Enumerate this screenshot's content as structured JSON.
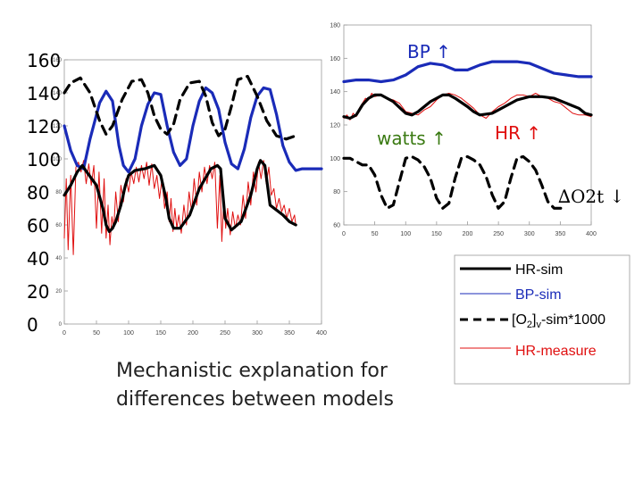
{
  "caption": "Mechanistic explanation for\ndifferences between models",
  "colors": {
    "hr_sim": "#000000",
    "bp_sim": "#1a2bb8",
    "o2_sim": "#000000",
    "hr_measure": "#e01010",
    "annot_blue": "#1a2bb8",
    "annot_green": "#3a7a12"
  },
  "chart_data": [
    {
      "type": "line",
      "title": "",
      "xlabel": "",
      "ylabel": "",
      "xlim": [
        0,
        400
      ],
      "ylim": [
        0,
        160
      ],
      "xticks": [
        "0",
        "50",
        "100",
        "150",
        "200",
        "250",
        "300",
        "350",
        "400"
      ],
      "yticks_small": [
        "0",
        "20",
        "40",
        "60",
        "80",
        "100",
        "120",
        "140",
        "160"
      ],
      "yticks_large": [
        "0",
        "20",
        "40",
        "60",
        "80",
        "100",
        "120",
        "140",
        "160"
      ],
      "series": [
        {
          "name": "BP-sim",
          "x": [
            0,
            10,
            20,
            30,
            40,
            55,
            65,
            75,
            85,
            92,
            100,
            110,
            120,
            130,
            140,
            150,
            160,
            170,
            180,
            190,
            200,
            210,
            220,
            230,
            240,
            250,
            260,
            270,
            280,
            290,
            300,
            310,
            320,
            330,
            340,
            350,
            360,
            370,
            380,
            390,
            400
          ],
          "values": [
            120,
            105,
            96,
            94,
            112,
            134,
            141,
            135,
            108,
            96,
            92,
            100,
            120,
            133,
            140,
            139,
            120,
            104,
            96,
            100,
            120,
            135,
            143,
            140,
            130,
            110,
            97,
            94,
            106,
            125,
            138,
            143,
            142,
            127,
            108,
            98,
            93,
            94,
            94,
            94,
            94
          ]
        },
        {
          "name": "[O2]v-sim*1000",
          "x": [
            0,
            10,
            25,
            40,
            55,
            65,
            75,
            90,
            105,
            120,
            130,
            140,
            150,
            160,
            170,
            180,
            195,
            210,
            220,
            230,
            240,
            250,
            260,
            270,
            285,
            300,
            315,
            330,
            345,
            360
          ],
          "values": [
            140,
            146,
            149,
            140,
            123,
            115,
            120,
            136,
            147,
            148,
            140,
            126,
            118,
            115,
            121,
            136,
            146,
            147,
            138,
            122,
            114,
            118,
            132,
            148,
            150,
            138,
            123,
            114,
            112,
            114
          ]
        },
        {
          "name": "HR-sim",
          "x": [
            0,
            10,
            20,
            28,
            35,
            50,
            60,
            65,
            70,
            75,
            80,
            88,
            95,
            100,
            110,
            125,
            140,
            150,
            158,
            163,
            170,
            180,
            195,
            210,
            228,
            238,
            243,
            250,
            260,
            275,
            290,
            300,
            305,
            312,
            320,
            340,
            350,
            360
          ],
          "values": [
            78,
            84,
            92,
            96,
            92,
            84,
            70,
            60,
            56,
            58,
            62,
            72,
            84,
            90,
            93,
            94,
            96,
            90,
            76,
            64,
            58,
            58,
            66,
            82,
            94,
            96,
            94,
            64,
            57,
            62,
            78,
            94,
            99,
            96,
            72,
            66,
            62,
            60
          ]
        },
        {
          "name": "HR-measure",
          "x": [
            0,
            3,
            6,
            10,
            14,
            18,
            22,
            26,
            30,
            34,
            38,
            42,
            46,
            50,
            54,
            58,
            62,
            65,
            68,
            71,
            74,
            77,
            80,
            84,
            88,
            92,
            96,
            100,
            104,
            108,
            112,
            116,
            120,
            124,
            128,
            132,
            136,
            140,
            144,
            148,
            152,
            156,
            160,
            163,
            166,
            169,
            172,
            175,
            178,
            182,
            186,
            190,
            194,
            198,
            202,
            206,
            210,
            214,
            218,
            222,
            226,
            230,
            234,
            238,
            242,
            245,
            248,
            251,
            254,
            258,
            262,
            266,
            270,
            274,
            278,
            282,
            286,
            290,
            294,
            298,
            302,
            306,
            310,
            314,
            318,
            322,
            326,
            330,
            334,
            338,
            342,
            346,
            350,
            354,
            358,
            360
          ],
          "values": [
            52,
            88,
            45,
            90,
            42,
            95,
            98,
            92,
            99,
            85,
            97,
            84,
            96,
            58,
            92,
            55,
            88,
            52,
            72,
            48,
            65,
            58,
            80,
            62,
            84,
            74,
            88,
            80,
            92,
            85,
            95,
            86,
            96,
            88,
            98,
            84,
            97,
            82,
            90,
            76,
            88,
            70,
            80,
            62,
            76,
            56,
            70,
            58,
            66,
            55,
            72,
            60,
            80,
            68,
            88,
            72,
            92,
            80,
            95,
            85,
            96,
            88,
            98,
            58,
            90,
            50,
            76,
            58,
            70,
            54,
            68,
            58,
            66,
            60,
            78,
            64,
            86,
            72,
            92,
            80,
            98,
            88,
            99,
            85,
            95,
            78,
            82,
            70,
            76,
            68,
            72,
            64,
            70,
            62,
            66,
            60
          ]
        }
      ]
    },
    {
      "type": "line",
      "title": "",
      "xlabel": "",
      "ylabel": "",
      "xlim": [
        0,
        400
      ],
      "ylim": [
        60,
        180
      ],
      "xticks": [
        "0",
        "50",
        "100",
        "150",
        "200",
        "250",
        "300",
        "350",
        "400"
      ],
      "yticks": [
        "60",
        "80",
        "100",
        "120",
        "140",
        "160",
        "180"
      ],
      "annotations": [
        "BP ↑",
        "watts ↑",
        "HR ↑",
        "∆O2t ↓"
      ],
      "series": [
        {
          "name": "BP-sim",
          "x": [
            0,
            20,
            40,
            60,
            80,
            100,
            120,
            140,
            160,
            180,
            200,
            220,
            240,
            260,
            280,
            300,
            320,
            340,
            360,
            380,
            400
          ],
          "values": [
            146,
            147,
            147,
            146,
            147,
            150,
            155,
            157,
            156,
            153,
            153,
            156,
            158,
            158,
            158,
            157,
            154,
            151,
            150,
            149,
            149
          ]
        },
        {
          "name": "HR-sim",
          "x": [
            0,
            10,
            20,
            30,
            40,
            50,
            60,
            80,
            100,
            110,
            120,
            140,
            160,
            170,
            180,
            200,
            210,
            220,
            240,
            260,
            280,
            300,
            320,
            340,
            360,
            380,
            390,
            400
          ],
          "values": [
            125,
            124,
            126,
            132,
            136,
            138,
            138,
            134,
            127,
            126,
            128,
            134,
            138,
            138,
            136,
            131,
            128,
            126,
            127,
            131,
            135,
            137,
            137,
            136,
            133,
            130,
            127,
            126
          ]
        },
        {
          "name": "HR-measure",
          "x": [
            0,
            5,
            10,
            15,
            20,
            25,
            30,
            35,
            40,
            45,
            50,
            60,
            70,
            80,
            90,
            100,
            110,
            120,
            130,
            140,
            150,
            160,
            170,
            180,
            190,
            200,
            210,
            220,
            230,
            240,
            250,
            260,
            270,
            280,
            290,
            300,
            310,
            320,
            330,
            340,
            350,
            360,
            370,
            380,
            390,
            400
          ],
          "values": [
            124,
            126,
            123,
            127,
            125,
            130,
            133,
            136,
            135,
            139,
            137,
            138,
            136,
            135,
            133,
            128,
            127,
            126,
            129,
            131,
            135,
            138,
            139,
            138,
            136,
            133,
            130,
            126,
            124,
            128,
            131,
            133,
            136,
            138,
            138,
            137,
            139,
            137,
            136,
            134,
            133,
            130,
            127,
            126,
            126,
            125
          ]
        },
        {
          "name": "[O2]v-sim*1000",
          "x": [
            0,
            10,
            20,
            30,
            40,
            50,
            60,
            70,
            80,
            90,
            100,
            110,
            120,
            130,
            140,
            150,
            160,
            170,
            180,
            190,
            200,
            210,
            220,
            230,
            240,
            250,
            260,
            270,
            280,
            290,
            300,
            310,
            320,
            330,
            340,
            350,
            360
          ],
          "values": [
            100,
            100,
            98,
            96,
            96,
            90,
            78,
            70,
            72,
            86,
            100,
            101,
            99,
            95,
            88,
            76,
            70,
            73,
            88,
            100,
            101,
            99,
            96,
            89,
            78,
            70,
            74,
            88,
            100,
            101,
            98,
            93,
            84,
            74,
            70,
            70,
            70
          ]
        }
      ]
    }
  ],
  "legend": [
    {
      "label": "HR-sim",
      "style": "solid-thick"
    },
    {
      "label": "BP-sim",
      "style": "solid-thin-blue"
    },
    {
      "label": "[O2]v-sim*1000",
      "label_main": "[O",
      "label_sub": "2",
      "label_rest": "]",
      "label_sub2": "v",
      "label_end": "-sim*1000",
      "style": "dashed"
    },
    {
      "label": "HR-measure",
      "style": "solid-thin-red"
    }
  ]
}
